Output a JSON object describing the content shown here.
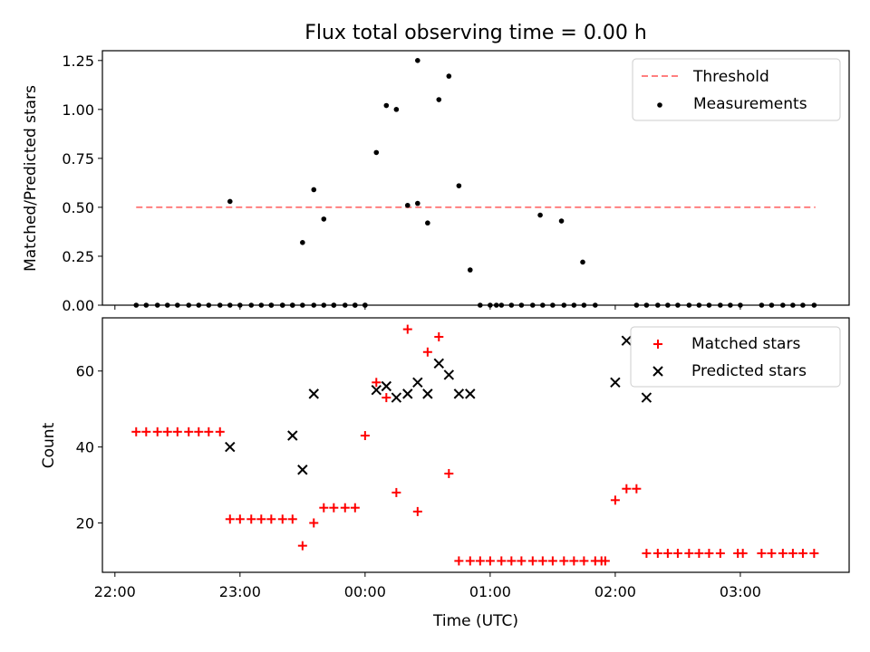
{
  "chart_data": {
    "title": "Flux total observing time = 0.00 h",
    "xlabel": "Time (UTC)",
    "x_ticks": [
      "22:00",
      "23:00",
      "00:00",
      "01:00",
      "02:00",
      "03:00"
    ],
    "x_unit": "hours since 22:00 UTC",
    "xlim": [
      -0.1,
      5.87
    ],
    "panels": [
      {
        "type": "scatter",
        "ylabel": "Matched/Predicted stars",
        "ylim": [
          0.0,
          1.3
        ],
        "y_ticks": [
          "0.00",
          "0.25",
          "0.50",
          "0.75",
          "1.00",
          "1.25"
        ],
        "legend": {
          "position": "top-right",
          "entries": [
            "Threshold",
            "Measurements"
          ]
        },
        "series": [
          {
            "name": "Threshold",
            "kind": "dashed-line",
            "color": "#ff7f7f",
            "x": [
              0.17,
              5.6
            ],
            "y": [
              0.5,
              0.5
            ]
          },
          {
            "name": "Measurements",
            "kind": "dots",
            "color": "#000000",
            "x": [
              0.17,
              0.25,
              0.34,
              0.42,
              0.5,
              0.59,
              0.67,
              0.75,
              0.84,
              0.92,
              0.92,
              1.0,
              1.09,
              1.17,
              1.25,
              1.34,
              1.42,
              1.5,
              1.59,
              1.67,
              1.75,
              1.84,
              2.42,
              2.5,
              2.59,
              2.67,
              2.75,
              2.84,
              2.92,
              3.0,
              3.09,
              3.17,
              3.25,
              3.34,
              3.42,
              3.5,
              3.59,
              3.67,
              3.75,
              3.84,
              3.05,
              3.4,
              3.57,
              3.74,
              4.17,
              4.25,
              4.34,
              4.42,
              4.5,
              4.59,
              4.67,
              4.75,
              4.84,
              4.92,
              5.0,
              5.17,
              5.25,
              5.34,
              5.42,
              5.5,
              5.59
            ],
            "y": [
              0,
              0,
              0,
              0,
              0,
              0,
              0,
              0,
              0,
              0.53,
              0,
              0,
              0,
              0,
              0,
              0,
              0,
              0.32,
              0.59,
              0.44,
              0,
              0,
              0.52,
              0.42,
              1.05,
              1.17,
              0.61,
              0.18,
              0,
              0,
              0,
              0,
              0,
              0,
              0,
              0,
              0,
              0,
              0,
              0,
              0,
              0.46,
              0.43,
              0.22,
              0,
              0,
              0,
              0,
              0,
              0,
              0,
              0,
              0,
              0,
              0,
              0,
              0,
              0,
              0,
              0,
              0
            ]
          },
          {
            "name": "",
            "kind": "dots",
            "color": "#000000",
            "x": [
              1.92,
              2.0,
              2.09,
              2.17,
              2.25,
              2.34,
              2.42
            ],
            "y": [
              0,
              0,
              0.78,
              1.02,
              1.0,
              0.51,
              1.25
            ]
          },
          {
            "name": "",
            "kind": "dots",
            "color": "#000000",
            "x": [
              1.25,
              1.34,
              1.42,
              1.5,
              1.59,
              1.67,
              1.75,
              1.92,
              2.0
            ],
            "y": [
              0,
              0,
              0,
              0,
              0,
              0,
              0,
              0,
              0
            ]
          }
        ]
      },
      {
        "type": "scatter",
        "ylabel": "Count",
        "ylim": [
          7,
          74
        ],
        "y_ticks": [
          "20",
          "40",
          "60"
        ],
        "legend": {
          "position": "top-right",
          "entries": [
            "Matched stars",
            "Predicted stars"
          ]
        },
        "series": [
          {
            "name": "Matched stars",
            "marker": "plus",
            "color": "#ff0000",
            "x": [
              0.17,
              0.25,
              0.34,
              0.42,
              0.5,
              0.59,
              0.67,
              0.75,
              0.84,
              0.92,
              1.0,
              1.09,
              1.17,
              1.25,
              1.34,
              1.42,
              1.5,
              1.59,
              1.67,
              1.75,
              1.84,
              1.92,
              2.0,
              2.09,
              2.17,
              2.25,
              2.34,
              2.42,
              2.5,
              2.59,
              2.67,
              2.75,
              2.84,
              2.92,
              3.0,
              3.09,
              3.17,
              3.25,
              3.34,
              3.42,
              3.5,
              3.59,
              3.67,
              3.75,
              3.84,
              3.89,
              3.92,
              4.0,
              4.09,
              4.17,
              4.25,
              4.34,
              4.42,
              4.5,
              4.59,
              4.67,
              4.75,
              4.84,
              4.98,
              5.02,
              5.17,
              5.25,
              5.34,
              5.42,
              5.5,
              5.59
            ],
            "y": [
              44,
              44,
              44,
              44,
              44,
              44,
              44,
              44,
              44,
              21,
              21,
              21,
              21,
              21,
              21,
              21,
              14,
              20,
              24,
              24,
              24,
              24,
              43,
              57,
              53,
              28,
              71,
              23,
              65,
              69,
              33,
              10,
              10,
              10,
              10,
              10,
              10,
              10,
              10,
              10,
              10,
              10,
              10,
              10,
              10,
              10,
              10,
              26,
              29,
              29,
              12,
              12,
              12,
              12,
              12,
              12,
              12,
              12,
              12,
              12,
              12,
              12,
              12,
              12,
              12,
              12
            ]
          },
          {
            "name": "Predicted stars",
            "marker": "x",
            "color": "#000000",
            "x": [
              0.92,
              1.42,
              1.5,
              1.59,
              2.09,
              2.17,
              2.25,
              2.34,
              2.42,
              2.5,
              2.59,
              2.67,
              2.75,
              2.84,
              4.0,
              4.09,
              4.25
            ],
            "y": [
              40,
              43,
              34,
              54,
              55,
              56,
              53,
              54,
              57,
              54,
              62,
              59,
              54,
              54,
              57,
              68,
              53
            ]
          }
        ]
      }
    ]
  }
}
